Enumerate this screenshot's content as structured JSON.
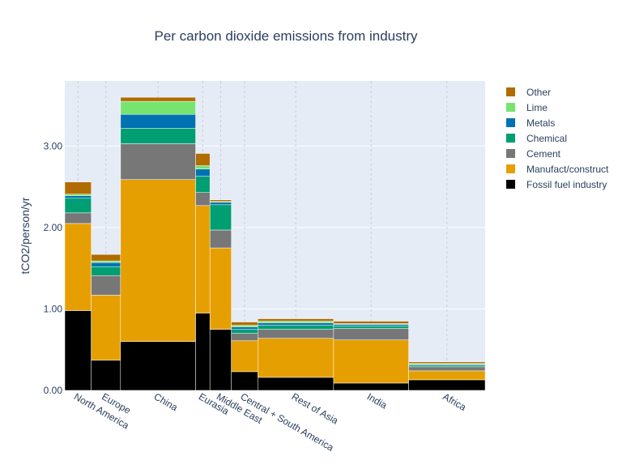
{
  "chart_data": {
    "type": "bar",
    "layout": "variable-width stacked bar (mekko)",
    "title": "Per carbon dioxide emissions from industry",
    "xlabel": "",
    "ylabel": "tCO2/person/yr",
    "ylim": [
      0,
      3.8
    ],
    "yticks": [
      0,
      1,
      2,
      3
    ],
    "ytick_labels": [
      "0.00",
      "1.00",
      "2.00",
      "3.00"
    ],
    "grid": true,
    "legend_position": "right",
    "categories": [
      "North America",
      "Europe",
      "China",
      "Eurasia",
      "Middle East",
      "Central + South America",
      "Rest of Asia",
      "India",
      "Africa"
    ],
    "widths": [
      0.37,
      0.41,
      1.05,
      0.2,
      0.3,
      0.37,
      1.06,
      1.05,
      1.07
    ],
    "series": [
      {
        "name": "Fossil fuel industry",
        "color": "#000000",
        "values": [
          0.98,
          0.37,
          0.6,
          0.95,
          0.75,
          0.23,
          0.16,
          0.09,
          0.13
        ]
      },
      {
        "name": "Manufact/construct",
        "color": "#E69F00",
        "values": [
          1.07,
          0.8,
          1.99,
          1.32,
          1.0,
          0.38,
          0.48,
          0.53,
          0.11
        ]
      },
      {
        "name": "Cement",
        "color": "#777777",
        "values": [
          0.13,
          0.24,
          0.44,
          0.16,
          0.22,
          0.09,
          0.11,
          0.14,
          0.05
        ]
      },
      {
        "name": "Chemical",
        "color": "#009E73",
        "values": [
          0.18,
          0.11,
          0.19,
          0.2,
          0.31,
          0.05,
          0.05,
          0.03,
          0.02
        ]
      },
      {
        "name": "Metals",
        "color": "#0072B2",
        "values": [
          0.03,
          0.05,
          0.17,
          0.09,
          0.03,
          0.03,
          0.03,
          0.02,
          0.01
        ]
      },
      {
        "name": "Lime",
        "color": "#77E46F",
        "values": [
          0.02,
          0.02,
          0.16,
          0.04,
          0.01,
          0.02,
          0.02,
          0.01,
          0.01
        ]
      },
      {
        "name": "Other",
        "color": "#B06C00",
        "values": [
          0.15,
          0.08,
          0.05,
          0.15,
          0.02,
          0.04,
          0.03,
          0.03,
          0.02
        ]
      }
    ],
    "legend_order": [
      "Other",
      "Lime",
      "Metals",
      "Chemical",
      "Cement",
      "Manufact/construct",
      "Fossil fuel industry"
    ]
  }
}
